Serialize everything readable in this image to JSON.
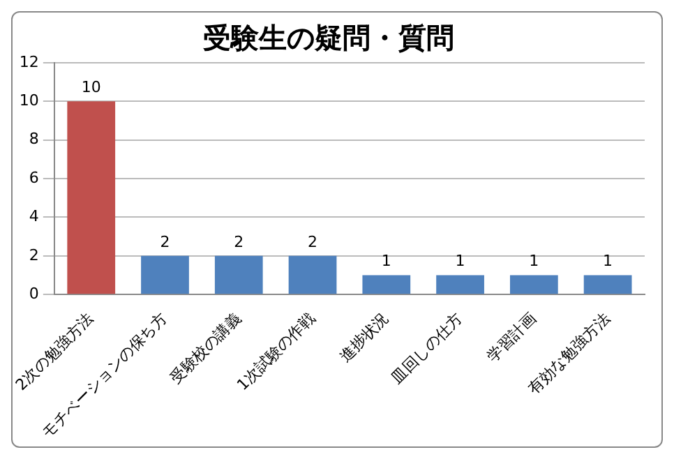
{
  "chart_data": {
    "type": "bar",
    "title": "受験生の疑問・質問",
    "categories": [
      "2次の勉強方法",
      "モチベーションの保ち方",
      "受験校の講義",
      "1次試験の作戦",
      "進捗状況",
      "皿回しの仕方",
      "学習計画",
      "有効な勉強方法"
    ],
    "values": [
      10,
      2,
      2,
      2,
      1,
      1,
      1,
      1
    ],
    "colors": [
      "#c0504d",
      "#4f81bd",
      "#4f81bd",
      "#4f81bd",
      "#4f81bd",
      "#4f81bd",
      "#4f81bd",
      "#4f81bd"
    ],
    "ylim": [
      0,
      12
    ],
    "yticks": [
      0,
      2,
      4,
      6,
      8,
      10,
      12
    ],
    "grid": "y",
    "data_labels": true,
    "legend": false
  }
}
